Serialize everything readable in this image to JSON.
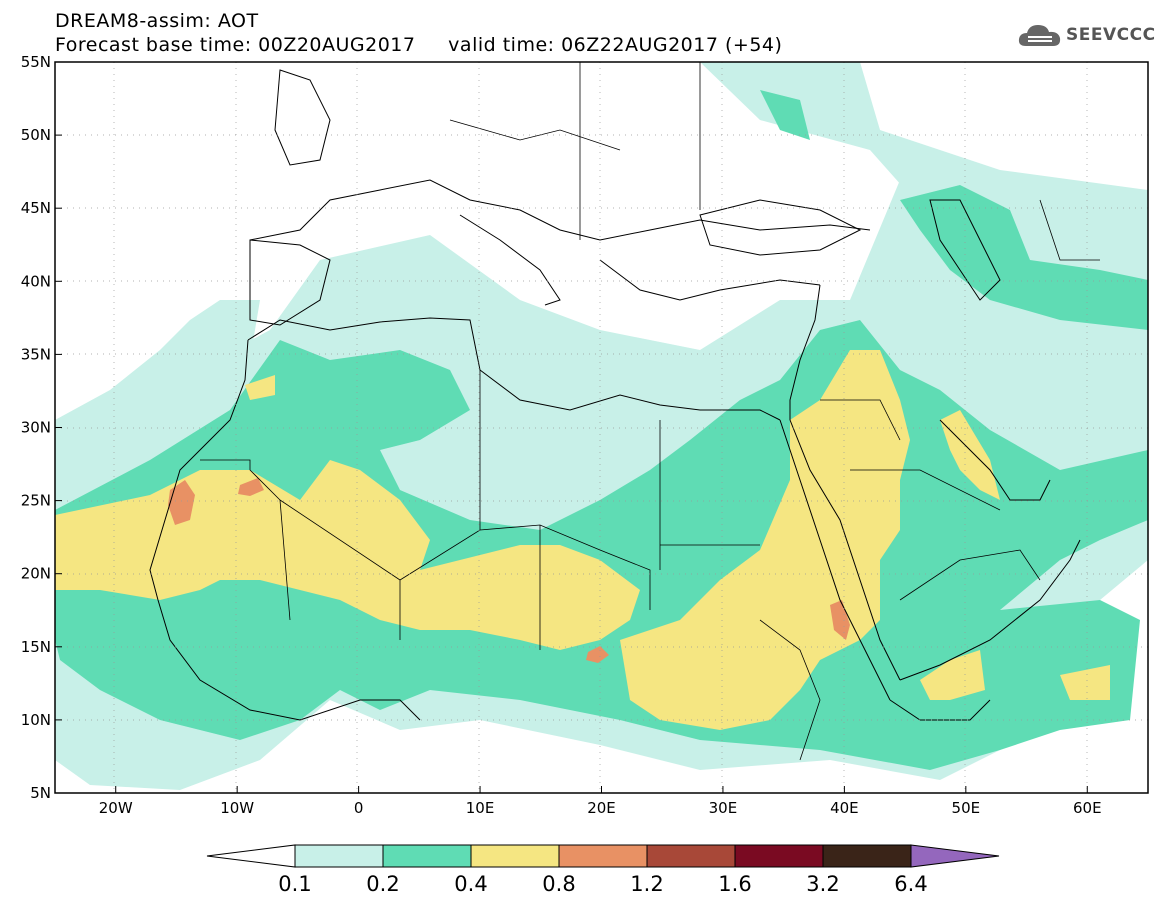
{
  "header": {
    "line1": "DREAM8-assim: AOT",
    "line2": "Forecast base time: 00Z20AUG2017     valid time: 06Z22AUG2017 (+54)"
  },
  "logo": {
    "text": "SEEVCCC",
    "icon": "cloud-icon"
  },
  "map": {
    "lon_range": [
      -25,
      65
    ],
    "lat_range": [
      5,
      55
    ],
    "grid": "dotted",
    "y_ticks": [
      {
        "value": 55,
        "label": "55N"
      },
      {
        "value": 50,
        "label": "50N"
      },
      {
        "value": 45,
        "label": "45N"
      },
      {
        "value": 40,
        "label": "40N"
      },
      {
        "value": 35,
        "label": "35N"
      },
      {
        "value": 30,
        "label": "30N"
      },
      {
        "value": 25,
        "label": "25N"
      },
      {
        "value": 20,
        "label": "20N"
      },
      {
        "value": 15,
        "label": "15N"
      },
      {
        "value": 10,
        "label": "10N"
      },
      {
        "value": 5,
        "label": "5N"
      }
    ],
    "x_ticks": [
      {
        "value": -20,
        "label": "20W"
      },
      {
        "value": -10,
        "label": "10W"
      },
      {
        "value": 0,
        "label": "0"
      },
      {
        "value": 10,
        "label": "10E"
      },
      {
        "value": 20,
        "label": "20E"
      },
      {
        "value": 30,
        "label": "30E"
      },
      {
        "value": 40,
        "label": "40E"
      },
      {
        "value": 50,
        "label": "50E"
      },
      {
        "value": 60,
        "label": "60E"
      }
    ]
  },
  "colorbar": {
    "segments": [
      "#c8f0e8",
      "#5fdcb4",
      "#f5e682",
      "#e89164",
      "#a84838",
      "#7a0a22",
      "#3a2418",
      "#9467bd"
    ],
    "labels": [
      "0.1",
      "0.2",
      "0.4",
      "0.8",
      "1.2",
      "1.6",
      "3.2",
      "6.4"
    ]
  },
  "colors": {
    "light": "#c8f0e8",
    "green": "#5fdcb4",
    "yellow": "#f5e682",
    "orange": "#e89164",
    "darkred": "#a84838"
  }
}
